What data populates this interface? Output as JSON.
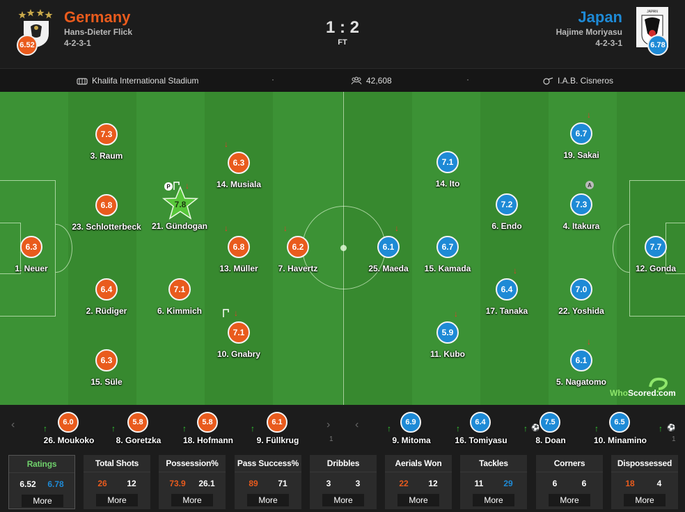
{
  "colors": {
    "home": "#e95b1d",
    "away": "#1e8ad6",
    "pitch": "#3a8f33",
    "highlight_green": "#6fd06b",
    "sub_out": "#e53c2c",
    "sub_in": "#33cc33"
  },
  "header": {
    "home": {
      "name": "Germany",
      "coach": "Hans-Dieter Flick",
      "formation": "4-2-3-1",
      "rating": "6.52"
    },
    "away": {
      "name": "Japan",
      "coach": "Hajime Moriyasu",
      "formation": "4-2-3-1",
      "rating": "6.78",
      "crest_label": "JAPAN"
    },
    "score": "1 : 2",
    "status": "FT"
  },
  "info": {
    "stadium": "Khalifa International Stadium",
    "attendance": "42,608",
    "referee": "I.A.B. Cisneros",
    "separator": "·"
  },
  "watermark": {
    "part_a": "Who",
    "part_b": "Scored",
    "part_c": ".com"
  },
  "lineup": {
    "home": [
      {
        "num_name": "1. Neuer",
        "rating": "6.3"
      },
      {
        "num_name": "3. Raum",
        "rating": "7.3"
      },
      {
        "num_name": "23. Schlotterbeck",
        "rating": "6.8"
      },
      {
        "num_name": "2. Rüdiger",
        "rating": "6.4"
      },
      {
        "num_name": "15. Süle",
        "rating": "6.3"
      },
      {
        "num_name": "21. Gündogan",
        "rating": "7.8",
        "man_of_match": true
      },
      {
        "num_name": "6. Kimmich",
        "rating": "7.1"
      },
      {
        "num_name": "14. Musiala",
        "rating": "6.3"
      },
      {
        "num_name": "13. Müller",
        "rating": "6.8"
      },
      {
        "num_name": "10. Gnabry",
        "rating": "7.1"
      },
      {
        "num_name": "7. Havertz",
        "rating": "6.2"
      }
    ],
    "away": [
      {
        "num_name": "19. Sakai",
        "rating": "6.7"
      },
      {
        "num_name": "4. Itakura",
        "rating": "7.3"
      },
      {
        "num_name": "12. Gonda",
        "rating": "7.7"
      },
      {
        "num_name": "22. Yoshida",
        "rating": "7.0"
      },
      {
        "num_name": "5. Nagatomo",
        "rating": "6.1"
      },
      {
        "num_name": "14. Ito",
        "rating": "7.1"
      },
      {
        "num_name": "6. Endo",
        "rating": "7.2"
      },
      {
        "num_name": "15. Kamada",
        "rating": "6.7"
      },
      {
        "num_name": "17. Tanaka",
        "rating": "6.4"
      },
      {
        "num_name": "11. Kubo",
        "rating": "5.9"
      },
      {
        "num_name": "25. Maeda",
        "rating": "6.1"
      }
    ]
  },
  "badges": {
    "gundogan_p": "P",
    "itakura_a": "A"
  },
  "subs": {
    "home": [
      {
        "num_name": "26. Moukoko",
        "rating": "6.0"
      },
      {
        "num_name": "8. Goretzka",
        "rating": "5.8"
      },
      {
        "num_name": "18. Hofmann",
        "rating": "5.8"
      },
      {
        "num_name": "9. Füllkrug",
        "rating": "6.1"
      }
    ],
    "away": [
      {
        "num_name": "9. Mitoma",
        "rating": "6.9"
      },
      {
        "num_name": "16. Tomiyasu",
        "rating": "6.4"
      },
      {
        "num_name": "8. Doan",
        "rating": "7.5"
      },
      {
        "num_name": "10. Minamino",
        "rating": "6.5"
      }
    ],
    "page_home": "1",
    "page_away": "1"
  },
  "stats": [
    {
      "title": "Ratings",
      "home": "6.52",
      "away": "6.78",
      "more": "More",
      "active": true
    },
    {
      "title": "Total Shots",
      "home": "26",
      "away": "12",
      "more": "More"
    },
    {
      "title": "Possession%",
      "home": "73.9",
      "away": "26.1",
      "more": "More"
    },
    {
      "title": "Pass Success%",
      "home": "89",
      "away": "71",
      "more": "More"
    },
    {
      "title": "Dribbles",
      "home": "3",
      "away": "3",
      "more": "More"
    },
    {
      "title": "Aerials Won",
      "home": "22",
      "away": "12",
      "more": "More"
    },
    {
      "title": "Tackles",
      "home": "11",
      "away": "29",
      "more": "More"
    },
    {
      "title": "Corners",
      "home": "6",
      "away": "6",
      "more": "More"
    },
    {
      "title": "Dispossessed",
      "home": "18",
      "away": "4",
      "more": "More"
    }
  ]
}
